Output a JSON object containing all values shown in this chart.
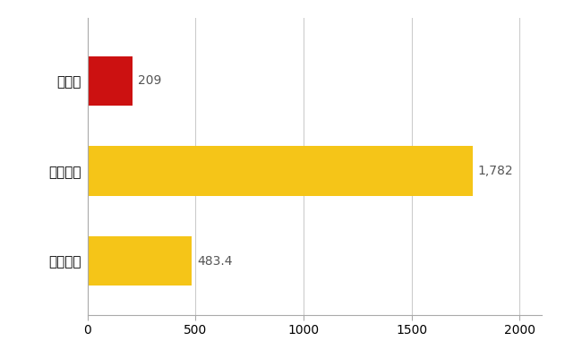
{
  "categories": [
    "徳島県",
    "全国最大",
    "全国平均"
  ],
  "values": [
    209,
    1782,
    483.4
  ],
  "bar_colors": [
    "#cc1111",
    "#f5c518",
    "#f5c518"
  ],
  "value_labels": [
    "209",
    "1,782",
    "483.4"
  ],
  "xlim": [
    0,
    2100
  ],
  "xticks": [
    0,
    500,
    1000,
    1500,
    2000
  ],
  "background_color": "#ffffff",
  "grid_color": "#cccccc",
  "bar_height": 0.55,
  "label_fontsize": 11,
  "tick_fontsize": 10,
  "value_fontsize": 10
}
